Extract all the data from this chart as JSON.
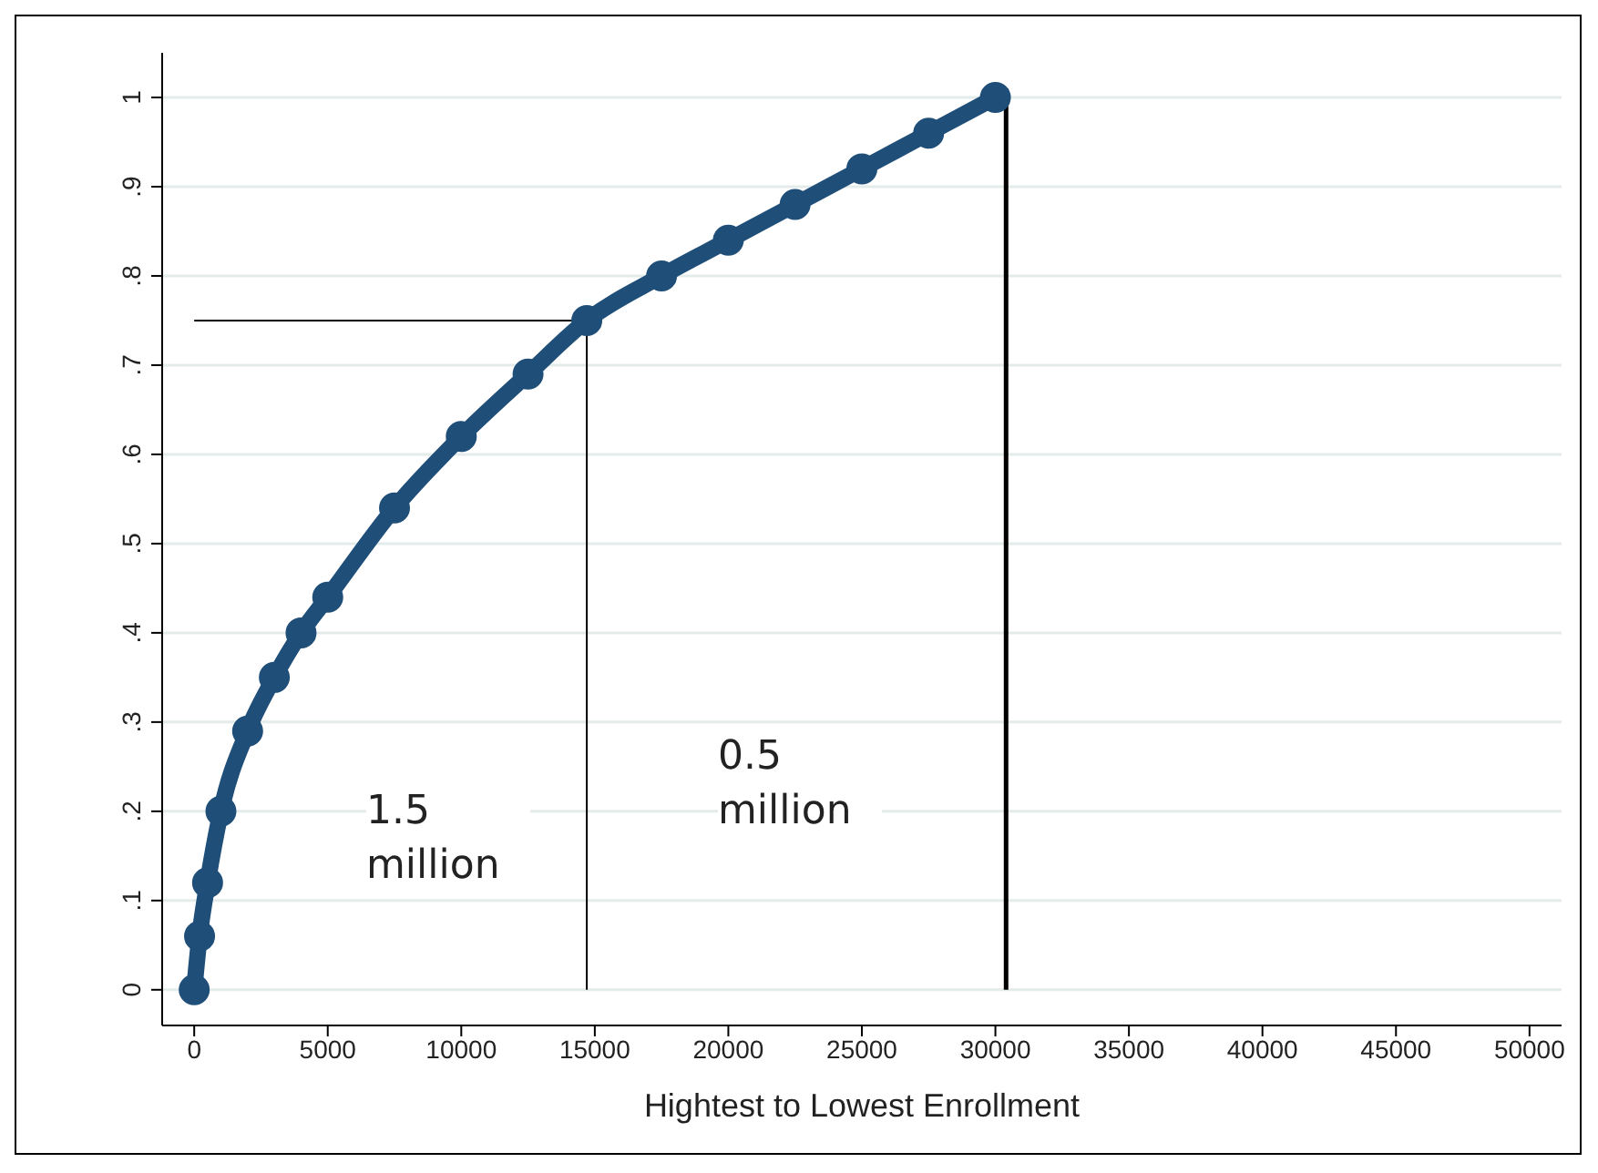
{
  "chart_data": {
    "type": "line",
    "xlabel": "Hightest to Lowest Enrollment",
    "xlim": [
      -1200,
      51200
    ],
    "ylim": [
      -0.04,
      1.05
    ],
    "xticks": [
      0,
      5000,
      10000,
      15000,
      20000,
      25000,
      30000,
      35000,
      40000,
      45000,
      50000
    ],
    "yticks": [
      0,
      {
        "value": 0.1,
        "label": ".1"
      },
      {
        "value": 0.2,
        "label": ".2"
      },
      {
        "value": 0.3,
        "label": ".3"
      },
      {
        "value": 0.4,
        "label": ".4"
      },
      {
        "value": 0.5,
        "label": ".5"
      },
      {
        "value": 0.6,
        "label": ".6"
      },
      {
        "value": 0.7,
        "label": ".7"
      },
      {
        "value": 0.8,
        "label": ".8"
      },
      {
        "value": 0.9,
        "label": ".9"
      },
      1
    ],
    "grid": "y",
    "series": [
      {
        "type": "line",
        "color": "#1f4e79",
        "marker": "circle",
        "x": [
          0,
          200,
          500,
          1000,
          2000,
          3000,
          4000,
          5000,
          7500,
          10000,
          12500,
          14700,
          17500,
          20000,
          22500,
          25000,
          27500,
          30000
        ],
        "values": [
          0,
          0.06,
          0.12,
          0.2,
          0.29,
          0.35,
          0.4,
          0.44,
          0.54,
          0.62,
          0.69,
          0.75,
          0.8,
          0.84,
          0.88,
          0.92,
          0.96,
          1.0
        ]
      },
      {
        "type": "line",
        "color": "#000000",
        "marker": "none",
        "x": [
          0,
          14700,
          14700
        ],
        "values": [
          0.75,
          0.75,
          0
        ]
      },
      {
        "type": "line",
        "color": "#000000",
        "marker": "none",
        "x": [
          30400,
          30400
        ],
        "values": [
          0,
          1.01
        ]
      }
    ],
    "annotations": [
      "1.5 million",
      "0.5 million"
    ]
  }
}
